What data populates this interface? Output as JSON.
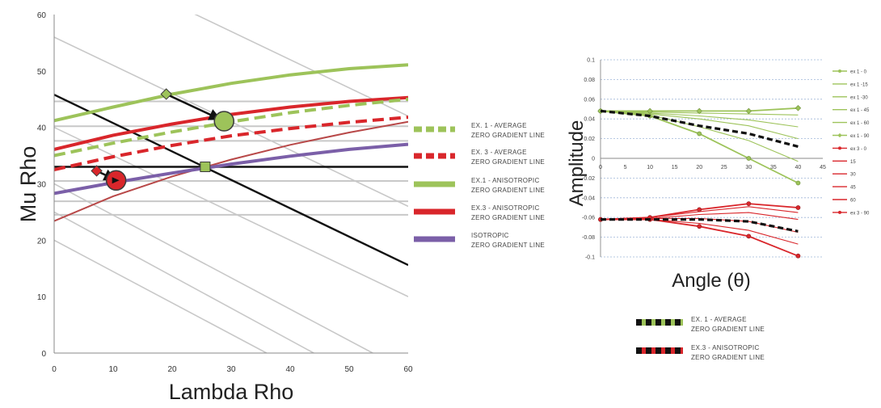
{
  "chart_data": [
    {
      "type": "line",
      "xlabel": "Lambda Rho",
      "ylabel": "Mu Rho",
      "xlim": [
        0,
        60
      ],
      "ylim": [
        0,
        60
      ],
      "x_ticks": [
        "0",
        "10",
        "20",
        "30",
        "40",
        "50",
        "60"
      ],
      "y_ticks": [
        "0",
        "10",
        "20",
        "30",
        "40",
        "50",
        "60"
      ],
      "grid": "gray horizontal lines and diagonal gray lines",
      "colors": {
        "green": "#9dc35a",
        "red": "#d9262b",
        "purple": "#7b5fa8",
        "black": "#111111",
        "gray": "#c8c8c8",
        "brown": "#b84848"
      },
      "series": [
        {
          "name": "EX. 1 - AVERAGE ZERO GRADIENT LINE",
          "style": "dashed",
          "color": "#9dc35a",
          "x": [
            0,
            10,
            20,
            30,
            40,
            50,
            60
          ],
          "y": [
            35,
            37.2,
            39.2,
            41,
            42.6,
            43.9,
            45
          ]
        },
        {
          "name": "EX. 3 - AVERAGE ZERO GRADIENT LINE",
          "style": "dashed",
          "color": "#d9262b",
          "x": [
            0,
            10,
            20,
            30,
            40,
            50,
            60
          ],
          "y": [
            32.5,
            34.8,
            36.8,
            38.5,
            39.8,
            40.9,
            41.8
          ]
        },
        {
          "name": "EX.1 - ANISOTROPIC ZERO GRADIENT LINE",
          "style": "solid",
          "color": "#9dc35a",
          "x": [
            0,
            10,
            20,
            30,
            40,
            50,
            60
          ],
          "y": [
            41.2,
            43.6,
            45.9,
            47.8,
            49.3,
            50.4,
            51.1
          ]
        },
        {
          "name": "EX.3 - ANISOTROPIC ZERO GRADIENT LINE",
          "style": "solid",
          "color": "#d9262b",
          "x": [
            0,
            10,
            20,
            30,
            40,
            50,
            60
          ],
          "y": [
            36.1,
            38.6,
            40.6,
            42.3,
            43.6,
            44.6,
            45.3
          ]
        },
        {
          "name": "ISOTROPIC ZERO GRADIENT LINE",
          "style": "solid",
          "color": "#7b5fa8",
          "x": [
            0,
            10,
            20,
            30,
            40,
            50,
            60
          ],
          "y": [
            28.3,
            30.2,
            31.9,
            33.5,
            34.9,
            36.1,
            37
          ]
        },
        {
          "style": "solid",
          "color": "#111111",
          "x": [
            0,
            60
          ],
          "y": [
            45.8,
            15.6
          ]
        },
        {
          "style": "solid",
          "color": "#111111",
          "x": [
            0,
            60
          ],
          "y": [
            33,
            33
          ]
        },
        {
          "style": "solid",
          "color": "#b84848",
          "x": [
            0,
            10,
            20,
            30,
            40,
            50,
            60
          ],
          "y": [
            23.4,
            27.8,
            31.3,
            34.3,
            36.9,
            39.1,
            41
          ]
        }
      ],
      "gray_horizontals": [
        44.6,
        40.2,
        37.6,
        30.5,
        26.9,
        24.5
      ],
      "gray_diagonals": [
        [
          [
            0,
            72
          ],
          [
            60,
            42
          ]
        ],
        [
          [
            0,
            56
          ],
          [
            60,
            26
          ]
        ],
        [
          [
            0,
            40
          ],
          [
            60,
            10
          ]
        ],
        [
          [
            0,
            30
          ],
          [
            54,
            0
          ]
        ],
        [
          [
            0,
            25
          ],
          [
            44,
            0
          ]
        ],
        [
          [
            0,
            20
          ],
          [
            36,
            0
          ]
        ]
      ],
      "markers": [
        {
          "kind": "diamond",
          "color": "#9dc35a",
          "x": 19,
          "y": 45.9
        },
        {
          "kind": "circle",
          "color": "#9dc35a",
          "x": 28.8,
          "y": 41.1
        },
        {
          "kind": "square",
          "color": "#9dc35a",
          "x": 25.6,
          "y": 33
        },
        {
          "kind": "diamond",
          "color": "#d9262b",
          "x": 7.2,
          "y": 32.3
        },
        {
          "kind": "circle",
          "color": "#d9262b",
          "x": 10.5,
          "y": 30.6
        }
      ],
      "arrows": [
        {
          "from": [
            19,
            45.9
          ],
          "to": [
            28,
            41.5
          ],
          "color": "#111111"
        },
        {
          "from": [
            7.2,
            32.3
          ],
          "to": [
            10.2,
            30.8
          ],
          "color": "#111111"
        }
      ],
      "legend": [
        {
          "label": "EX. 1 - AVERAGE",
          "sub": "ZERO GRADIENT LINE",
          "color": "#9dc35a",
          "style": "dashed"
        },
        {
          "label": "EX. 3 - AVERAGE",
          "sub": "ZERO GRADIENT LINE",
          "color": "#d9262b",
          "style": "dashed"
        },
        {
          "label": "EX.1 - ANISOTROPIC",
          "sub": "ZERO GRADIENT LINE",
          "color": "#9dc35a",
          "style": "solid"
        },
        {
          "label": "EX.3 - ANISOTROPIC",
          "sub": "ZERO GRADIENT LINE",
          "color": "#d9262b",
          "style": "solid"
        },
        {
          "label": "ISOTROPIC",
          "sub": "ZERO GRADIENT LINE",
          "color": "#7b5fa8",
          "style": "solid"
        }
      ],
      "legend_position": "right"
    },
    {
      "type": "line",
      "xlabel": "Angle (θ)",
      "ylabel": "Amplitude",
      "xlim": [
        0,
        45
      ],
      "ylim": [
        -0.1,
        0.1
      ],
      "x_ticks": [
        "0",
        "5",
        "10",
        "15",
        "20",
        "25",
        "30",
        "35",
        "40",
        "45"
      ],
      "y_ticks": [
        "0.1",
        "0.08",
        "0.06",
        "0.04",
        "0.02",
        "0",
        "-0.02",
        "-0.04",
        "-0.06",
        "-0.08",
        "-0.1"
      ],
      "grid": "dotted horizontal lines",
      "series": [
        {
          "name": "ex 1 - 0",
          "color": "#9dc35a",
          "x": [
            0,
            10,
            20,
            30,
            40
          ],
          "y": [
            0.048,
            0.043,
            0.025,
            0,
            -0.025
          ]
        },
        {
          "name": "ex 1 -15",
          "color": "#9dc35a",
          "x": [
            0,
            10,
            20,
            30,
            40
          ],
          "y": [
            0.048,
            0.044,
            0.032,
            0.018,
            -0.003
          ]
        },
        {
          "name": "ex 1 -30",
          "color": "#9dc35a",
          "x": [
            0,
            10,
            20,
            30,
            40
          ],
          "y": [
            0.048,
            0.045,
            0.04,
            0.033,
            0.02
          ]
        },
        {
          "name": "ex 1 - 45",
          "color": "#9dc35a",
          "x": [
            0,
            10,
            20,
            30,
            40
          ],
          "y": [
            0.048,
            0.046,
            0.043,
            0.039,
            0.032
          ]
        },
        {
          "name": "ex 1 - 60",
          "color": "#9dc35a",
          "x": [
            0,
            10,
            20,
            30,
            40
          ],
          "y": [
            0.048,
            0.047,
            0.046,
            0.045,
            0.044
          ]
        },
        {
          "name": "ex 1 - 90",
          "color": "#9dc35a",
          "x": [
            0,
            10,
            20,
            30,
            40
          ],
          "y": [
            0.048,
            0.048,
            0.048,
            0.048,
            0.051
          ]
        },
        {
          "name": "ex 3 - 0",
          "color": "#d9262b",
          "x": [
            0,
            10,
            20,
            30,
            40
          ],
          "y": [
            -0.062,
            -0.062,
            -0.069,
            -0.079,
            -0.099
          ]
        },
        {
          "name": "15",
          "color": "#d9262b",
          "x": [
            0,
            10,
            20,
            30,
            40
          ],
          "y": [
            -0.062,
            -0.062,
            -0.066,
            -0.073,
            -0.087
          ]
        },
        {
          "name": "30",
          "color": "#d9262b",
          "x": [
            0,
            10,
            20,
            30,
            40
          ],
          "y": [
            -0.062,
            -0.061,
            -0.061,
            -0.064,
            -0.075
          ]
        },
        {
          "name": "45",
          "color": "#d9262b",
          "x": [
            0,
            10,
            20,
            30,
            40
          ],
          "y": [
            -0.062,
            -0.061,
            -0.057,
            -0.055,
            -0.062
          ]
        },
        {
          "name": "60",
          "color": "#d9262b",
          "x": [
            0,
            10,
            20,
            30,
            40
          ],
          "y": [
            -0.062,
            -0.06,
            -0.054,
            -0.049,
            -0.055
          ]
        },
        {
          "name": "ex 3 - 90",
          "color": "#d9262b",
          "x": [
            0,
            10,
            20,
            30,
            40
          ],
          "y": [
            -0.062,
            -0.06,
            -0.052,
            -0.046,
            -0.05
          ]
        },
        {
          "name": "EX. 1 - AVERAGE ZERO GRADIENT LINE",
          "color": "#111111",
          "style": "dashed",
          "x": [
            0,
            10,
            20,
            30,
            40
          ],
          "y": [
            0.048,
            0.043,
            0.033,
            0.025,
            0.012
          ]
        },
        {
          "name": "EX.3 - ANISOTROPIC ZERO GRADIENT LINE",
          "color": "#111111",
          "style": "dashed",
          "x": [
            0,
            10,
            20,
            30,
            40
          ],
          "y": [
            -0.062,
            -0.062,
            -0.062,
            -0.064,
            -0.074
          ]
        }
      ],
      "legend": [
        {
          "label": "ex 1 - 0",
          "color": "#9dc35a"
        },
        {
          "label": "ex 1 -15",
          "color": "#9dc35a"
        },
        {
          "label": "ex 1 -30",
          "color": "#9dc35a"
        },
        {
          "label": "ex 1 - 45",
          "color": "#9dc35a"
        },
        {
          "label": "ex 1 - 60",
          "color": "#9dc35a"
        },
        {
          "label": "ex 1 - 90",
          "color": "#9dc35a"
        },
        {
          "label": "ex 3 - 0",
          "color": "#d9262b"
        },
        {
          "label": "15",
          "color": "#d9262b"
        },
        {
          "label": "30",
          "color": "#d9262b"
        },
        {
          "label": "45",
          "color": "#d9262b"
        },
        {
          "label": "60",
          "color": "#d9262b"
        },
        {
          "label": "ex 3 - 90",
          "color": "#d9262b"
        }
      ],
      "bottom_legend": [
        {
          "label": "EX. 1 - AVERAGE",
          "sub": "ZERO GRADIENT LINE",
          "color": "#9dc35a"
        },
        {
          "label": "EX.3 - ANISOTROPIC",
          "sub": "ZERO GRADIENT LINE",
          "color": "#d9262b"
        }
      ]
    }
  ]
}
